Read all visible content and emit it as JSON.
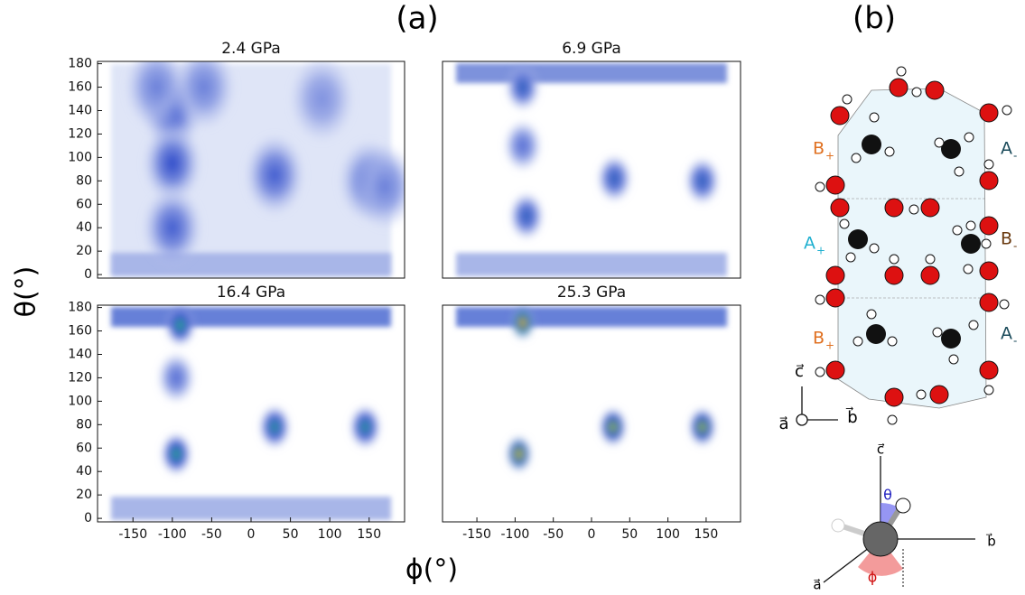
{
  "figure": {
    "panel_a": "(a)",
    "panel_b": "(b)",
    "ylabel": "θ(°)",
    "xlabel": "ϕ(°)"
  },
  "chart_data": [
    {
      "type": "heatmap",
      "title": "2.4 GPa",
      "xlim": [
        -195,
        195
      ],
      "ylim": [
        -3,
        182
      ],
      "yticks": [
        0,
        20,
        40,
        60,
        80,
        100,
        120,
        140,
        160,
        180
      ],
      "peaks": {
        "x": [
          -100,
          -100,
          -100,
          -120,
          30,
          150,
          170,
          -60,
          90
        ],
        "y": [
          140,
          95,
          40,
          160,
          85,
          80,
          75,
          160,
          150
        ],
        "intensity": [
          0.3,
          0.35,
          0.3,
          0.2,
          0.3,
          0.25,
          0.2,
          0.2,
          0.15
        ]
      }
    },
    {
      "type": "heatmap",
      "title": "6.9 GPa",
      "xlim": [
        -195,
        195
      ],
      "ylim": [
        -3,
        182
      ],
      "peaks": {
        "x": [
          -90,
          -90,
          -85,
          30,
          145
        ],
        "y": [
          160,
          110,
          50,
          82,
          80
        ],
        "intensity": [
          0.4,
          0.25,
          0.4,
          0.4,
          0.4
        ]
      }
    },
    {
      "type": "heatmap",
      "title": "16.4 GPa",
      "xlim": [
        -195,
        195
      ],
      "ylim": [
        -3,
        182
      ],
      "xticks": [
        -150,
        -100,
        -50,
        0,
        50,
        100,
        150
      ],
      "yticks": [
        0,
        20,
        40,
        60,
        80,
        100,
        120,
        140,
        160,
        180
      ],
      "peaks": {
        "x": [
          -90,
          -95,
          -95,
          30,
          145
        ],
        "y": [
          165,
          120,
          55,
          78,
          78
        ],
        "intensity": [
          0.6,
          0.25,
          0.6,
          0.55,
          0.55
        ]
      }
    },
    {
      "type": "heatmap",
      "title": "25.3 GPa",
      "xlim": [
        -195,
        195
      ],
      "ylim": [
        -3,
        182
      ],
      "xticks": [
        -150,
        -100,
        -50,
        0,
        50,
        100,
        150
      ],
      "peaks": {
        "x": [
          -90,
          -95,
          28,
          145
        ],
        "y": [
          167,
          55,
          78,
          78
        ],
        "intensity": [
          0.95,
          0.85,
          0.75,
          0.75
        ]
      }
    }
  ],
  "diagram": {
    "labels": [
      {
        "main": "B",
        "sub": "+"
      },
      {
        "main": "A",
        "sub": "-"
      },
      {
        "main": "A",
        "sub": "+"
      },
      {
        "main": "B",
        "sub": "-"
      },
      {
        "main": "B",
        "sub": "+"
      },
      {
        "main": "A",
        "sub": "-"
      }
    ],
    "axes": [
      "c⃗",
      "a⃗",
      "b⃗"
    ],
    "axes2": [
      "c⃗",
      "b⃗",
      "a⃗"
    ],
    "theta": "θ",
    "phi": "ϕ"
  }
}
